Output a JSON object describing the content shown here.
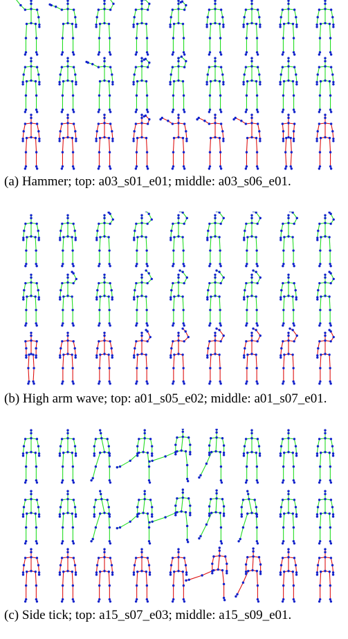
{
  "colors": {
    "green_bone": "#22dd22",
    "red_bone": "#dd1111",
    "joint": "#1122cc"
  },
  "panels": [
    {
      "id": "a",
      "caption": "(a)  Hammer;  top:  a03_s01_e01;  middle: a03_s06_e01.",
      "rows": [
        {
          "color": "green",
          "poses": [
            "wave_up_high",
            "wave_up_mid",
            "wave_up",
            "hammer_up_right",
            "stand_arm_up",
            "stand",
            "stand",
            "stand",
            "stand"
          ]
        },
        {
          "color": "green",
          "poses": [
            "stand",
            "stand",
            "wave_up_mid",
            "stand_arm_up",
            "hammer_up_right",
            "stand",
            "stand",
            "stand",
            "stand"
          ]
        },
        {
          "color": "red",
          "poses": [
            "stand",
            "stand",
            "stand",
            "stand_arm_up",
            "hammer_up_left",
            "hammer_up_left",
            "hammer_up_left",
            "narrow",
            "stand"
          ]
        }
      ]
    },
    {
      "id": "b",
      "caption": "(b) High arm wave; top:  a01_s05_e02; middle: a01_s07_e01.",
      "rows": [
        {
          "color": "green",
          "poses": [
            "stand",
            "stand",
            "wave_low",
            "wave_mid",
            "wave_up",
            "wave_up",
            "wave_up",
            "wave_up",
            "wave_low"
          ]
        },
        {
          "color": "green",
          "poses": [
            "stand",
            "wave_low",
            "stand",
            "wave_mid",
            "wave_up",
            "wave_up",
            "wave_up",
            "stand",
            "wave_low"
          ]
        },
        {
          "color": "red",
          "poses": [
            "narrow",
            "stand",
            "stand",
            "wave_low",
            "wave_mid",
            "wave_up",
            "wave_up",
            "wave_up",
            "wave_low"
          ]
        }
      ]
    },
    {
      "id": "c",
      "caption": "(c)  Side  tick;  top:  a15_s07_e03;  middle: a15_s09_e01.",
      "rows": [
        {
          "color": "green",
          "poses": [
            "stand",
            "stand",
            "lean_left",
            "kick_left_low",
            "kick_left_high",
            "kick_left",
            "stand",
            "stand",
            "stand"
          ]
        },
        {
          "color": "green",
          "poses": [
            "stand",
            "stand",
            "lean_left",
            "kick_left_low",
            "kick_left_high",
            "kick_left",
            "lean_left",
            "stand",
            "stand"
          ]
        },
        {
          "color": "red",
          "poses": [
            "stand",
            "stand",
            "stand",
            "stand",
            "stand",
            "kick_left_high",
            "kick_left",
            "stand",
            "stand"
          ]
        }
      ]
    }
  ]
}
